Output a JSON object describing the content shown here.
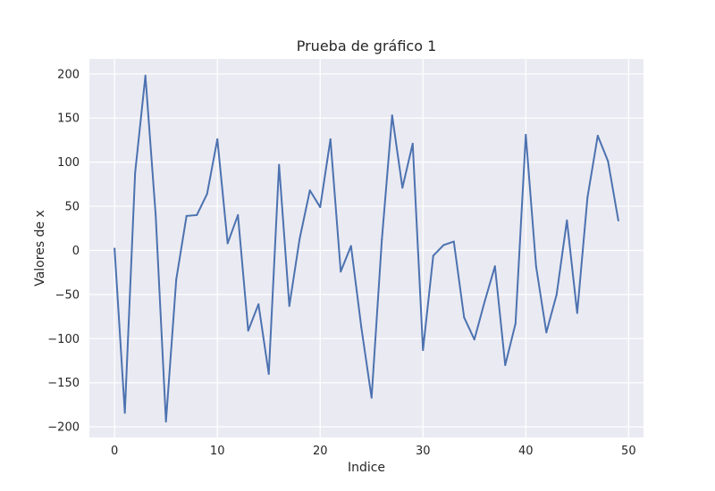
{
  "chart_data": {
    "type": "line",
    "title": "Prueba de gráfico 1",
    "xlabel": "Indice",
    "ylabel": "Valores de x",
    "xlim": [
      -2.45,
      51.45
    ],
    "ylim": [
      -212,
      217
    ],
    "xticks": [
      0,
      10,
      20,
      30,
      40,
      50
    ],
    "xtick_labels": [
      "0",
      "10",
      "20",
      "30",
      "40",
      "50"
    ],
    "yticks": [
      -200,
      -150,
      -100,
      -50,
      0,
      50,
      100,
      150,
      200
    ],
    "ytick_labels": [
      "−200",
      "−150",
      "−100",
      "−50",
      "0",
      "50",
      "100",
      "150",
      "200"
    ],
    "grid": true,
    "colors": {
      "plot_background": "#EAEAF2",
      "grid": "#FFFFFF",
      "line": "#4C72B0"
    },
    "series": [
      {
        "x": [
          0,
          1,
          2,
          3,
          4,
          5,
          6,
          7,
          8,
          9,
          10,
          11,
          12,
          13,
          14,
          15,
          16,
          17,
          18,
          19,
          20,
          21,
          22,
          23,
          24,
          25,
          26,
          27,
          28,
          29,
          30,
          31,
          32,
          33,
          34,
          35,
          36,
          37,
          38,
          39,
          40,
          41,
          42,
          43,
          44,
          45,
          46,
          47,
          48,
          49
        ],
        "values": [
          2,
          -184,
          88,
          198,
          40,
          -194,
          -33,
          39,
          40,
          64,
          126,
          8,
          40,
          -91,
          -61,
          -140,
          97,
          -63,
          13,
          68,
          49,
          126,
          -24,
          5,
          -87,
          -167,
          12,
          153,
          71,
          121,
          -113,
          -6,
          6,
          10,
          -76,
          -101,
          -58,
          -18,
          -130,
          -83,
          131,
          -18,
          -93,
          -50,
          34,
          -71,
          60,
          130,
          101,
          34
        ]
      }
    ]
  }
}
